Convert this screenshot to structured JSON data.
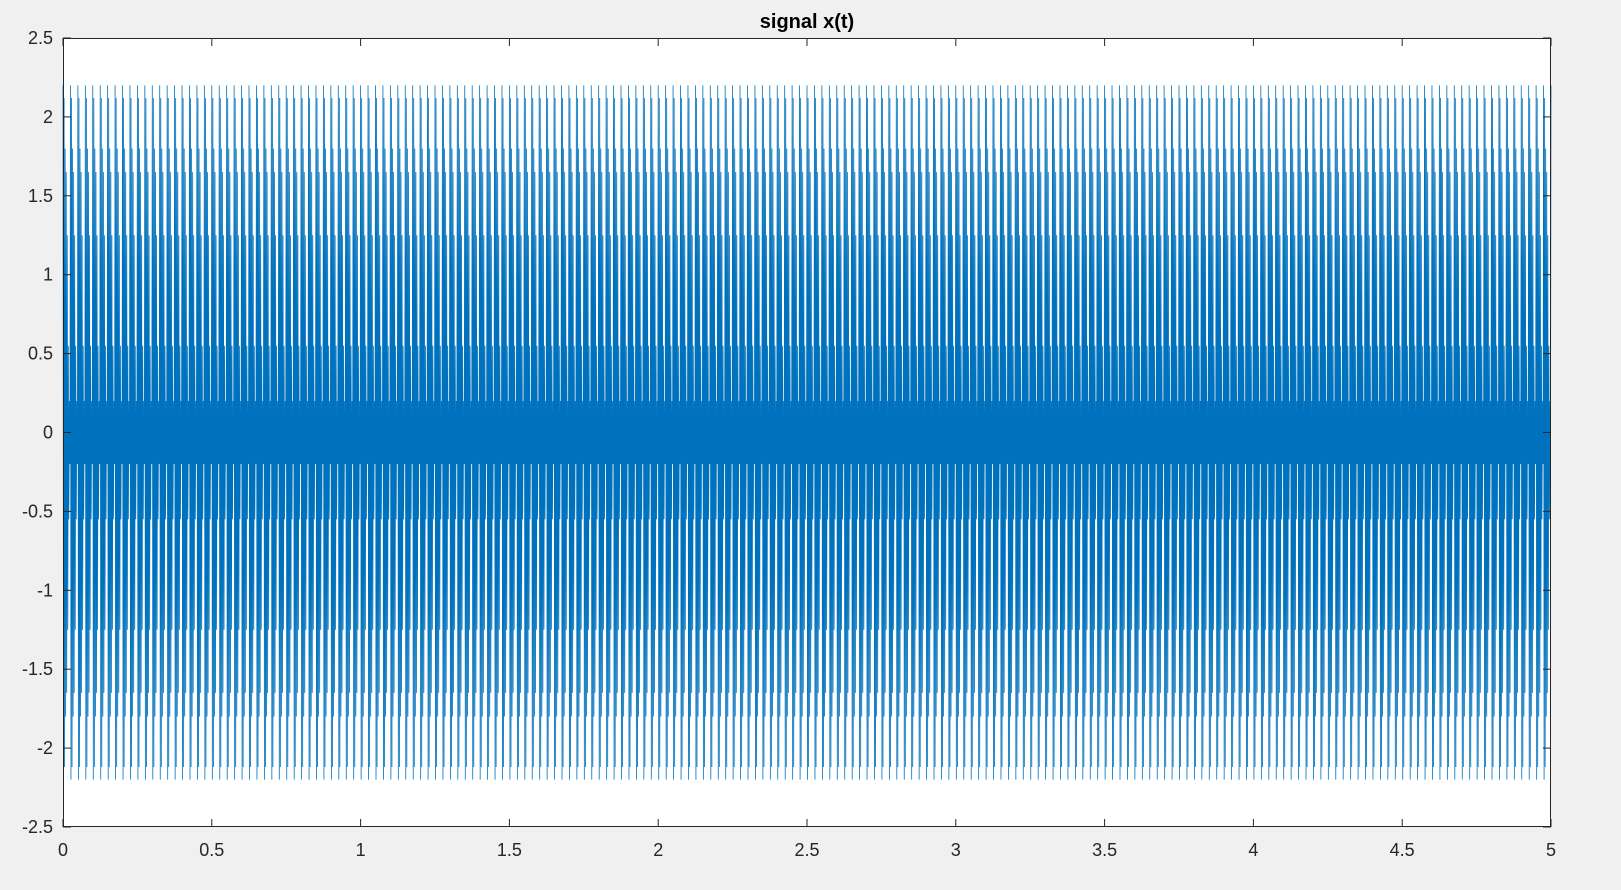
{
  "chart_data": {
    "type": "line",
    "title": "signal x(t)",
    "xlabel": "",
    "ylabel": "",
    "xlim": [
      0,
      5
    ],
    "ylim": [
      -2.5,
      2.5
    ],
    "xticks": [
      0,
      0.5,
      1,
      1.5,
      2,
      2.5,
      3,
      3.5,
      4,
      4.5,
      5
    ],
    "xtick_labels": [
      "0",
      "0.5",
      "1",
      "1.5",
      "2",
      "2.5",
      "3",
      "3.5",
      "4",
      "4.5",
      "5"
    ],
    "yticks": [
      -2.5,
      -2,
      -1.5,
      -1,
      -0.5,
      0,
      0.5,
      1,
      1.5,
      2,
      2.5
    ],
    "ytick_labels": [
      "-2.5",
      "-2",
      "-1.5",
      "-1",
      "-0.5",
      "0",
      "0.5",
      "1",
      "1.5",
      "2",
      "2.5"
    ],
    "grid": false,
    "legend": "none",
    "series": [
      {
        "color": "#0072BD",
        "x_range": [
          0,
          5
        ],
        "y_range": [
          -2.2,
          2.2
        ],
        "envelope_levels": [
          2.2,
          2.12,
          1.8,
          1.65,
          1.25,
          0.55,
          0.2,
          -0.2,
          -0.55,
          -1.25,
          -1.65,
          -1.8,
          -2.12,
          -2.2
        ]
      }
    ]
  },
  "colors": {
    "figure_background": "#f0f0f0",
    "axes_background": "#ffffff",
    "axes_color": "#262626",
    "line_color": "#0072BD"
  }
}
